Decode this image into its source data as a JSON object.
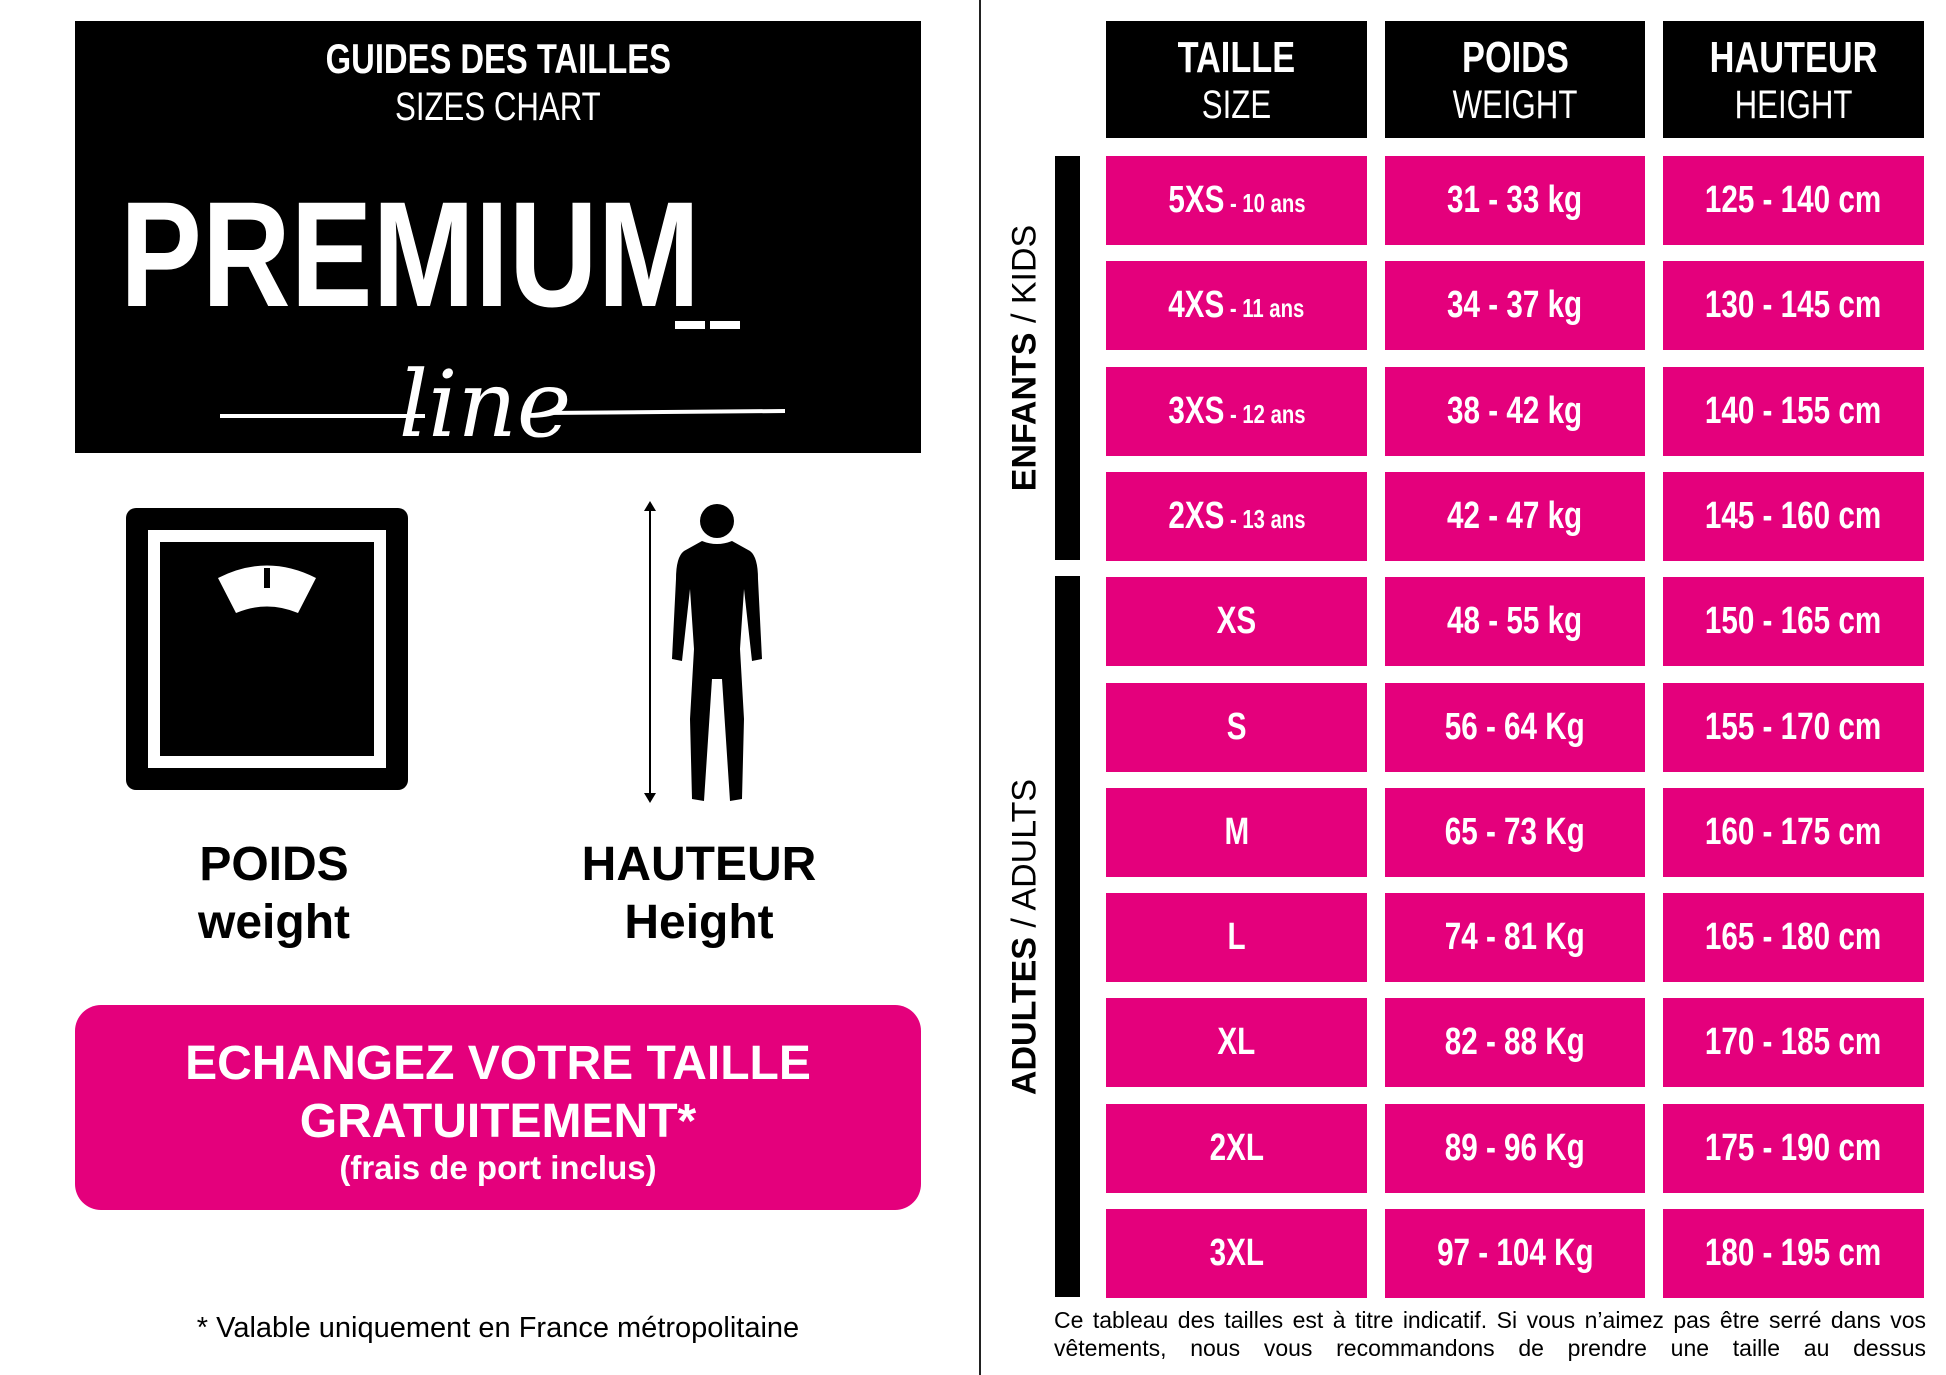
{
  "brand": {
    "title": "GUIDES DES TAILLES",
    "subtitle": "SIZES CHART",
    "logo_main": "PREMIUM",
    "logo_script": "line"
  },
  "icons": {
    "weight": {
      "icon": "scale-icon",
      "label": "POIDS",
      "sublabel": "weight"
    },
    "height": {
      "icon": "person-height-icon",
      "label": "HAUTEUR",
      "sublabel": "Height"
    }
  },
  "promo": {
    "line1": "ECHANGEZ VOTRE TAILLE",
    "line2": "GRATUITEMENT*",
    "line3": "(frais de port inclus)"
  },
  "footnote": "* Valable uniquement en France métropolitaine",
  "table": {
    "headers": [
      {
        "label": "TAILLE",
        "sublabel": "SIZE"
      },
      {
        "label": "POIDS",
        "sublabel": "WEIGHT"
      },
      {
        "label": "HAUTEUR",
        "sublabel": "HEIGHT"
      }
    ],
    "groups": {
      "kids": {
        "bold": "ENFANTS",
        "rest": " / KIDS"
      },
      "adults": {
        "bold": "ADULTES",
        "rest": " / ADULTS"
      }
    },
    "rows": [
      {
        "size": "5XS",
        "age": " - 10 ans",
        "weight": "31 - 33 kg",
        "height": "125 - 140 cm"
      },
      {
        "size": "4XS",
        "age": " - 11 ans",
        "weight": "34 - 37 kg",
        "height": "130 - 145 cm"
      },
      {
        "size": "3XS",
        "age": " - 12 ans",
        "weight": "38 - 42 kg",
        "height": "140 - 155 cm"
      },
      {
        "size": "2XS",
        "age": " - 13 ans",
        "weight": "42 - 47 kg",
        "height": "145 - 160 cm"
      },
      {
        "size": "XS",
        "age": "",
        "weight": "48 - 55 kg",
        "height": "150 - 165 cm"
      },
      {
        "size": "S",
        "age": "",
        "weight": "56 - 64 Kg",
        "height": "155 - 170 cm"
      },
      {
        "size": "M",
        "age": "",
        "weight": "65 - 73 Kg",
        "height": "160 - 175 cm"
      },
      {
        "size": "L",
        "age": "",
        "weight": "74 - 81 Kg",
        "height": "165 - 180 cm"
      },
      {
        "size": "XL",
        "age": "",
        "weight": "82 - 88 Kg",
        "height": "170 - 185 cm"
      },
      {
        "size": "2XL",
        "age": "",
        "weight": "89 - 96 Kg",
        "height": "175 - 190 cm"
      },
      {
        "size": "3XL",
        "age": "",
        "weight": "97 - 104 Kg",
        "height": "180 - 195 cm"
      }
    ],
    "note": "Ce tableau des tailles est à titre indicatif. Si vous n’aimez pas être serré dans vos vêtements, nous vous recommandons de prendre une taille au dessus"
  },
  "colors": {
    "accent": "#e4007c",
    "dark": "#000000"
  }
}
